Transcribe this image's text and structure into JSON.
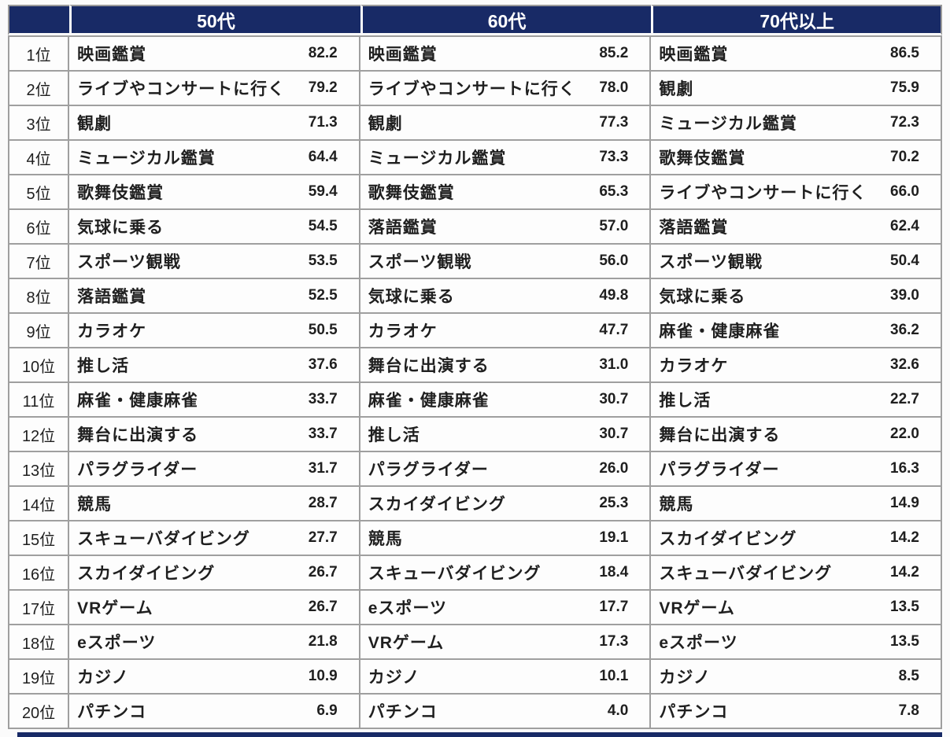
{
  "chart_data": {
    "type": "table",
    "description": "Ranking table of activities by age group with percentage values",
    "rank_labels": [
      "1位",
      "2位",
      "3位",
      "4位",
      "5位",
      "6位",
      "7位",
      "8位",
      "9位",
      "10位",
      "11位",
      "12位",
      "13位",
      "14位",
      "15位",
      "16位",
      "17位",
      "18位",
      "19位",
      "20位"
    ],
    "groups": [
      {
        "label": "50代",
        "items": [
          {
            "name": "映画鑑賞",
            "value": "82.2"
          },
          {
            "name": "ライブやコンサートに行く",
            "value": "79.2"
          },
          {
            "name": "観劇",
            "value": "71.3"
          },
          {
            "name": "ミュージカル鑑賞",
            "value": "64.4"
          },
          {
            "name": "歌舞伎鑑賞",
            "value": "59.4"
          },
          {
            "name": "気球に乗る",
            "value": "54.5"
          },
          {
            "name": "スポーツ観戦",
            "value": "53.5"
          },
          {
            "name": "落語鑑賞",
            "value": "52.5"
          },
          {
            "name": "カラオケ",
            "value": "50.5"
          },
          {
            "name": "推し活",
            "value": "37.6"
          },
          {
            "name": "麻雀・健康麻雀",
            "value": "33.7"
          },
          {
            "name": "舞台に出演する",
            "value": "33.7"
          },
          {
            "name": "パラグライダー",
            "value": "31.7"
          },
          {
            "name": "競馬",
            "value": "28.7"
          },
          {
            "name": "スキューバダイビング",
            "value": "27.7"
          },
          {
            "name": "スカイダイビング",
            "value": "26.7"
          },
          {
            "name": "VRゲーム",
            "value": "26.7"
          },
          {
            "name": "eスポーツ",
            "value": "21.8"
          },
          {
            "name": "カジノ",
            "value": "10.9"
          },
          {
            "name": "パチンコ",
            "value": "6.9"
          }
        ]
      },
      {
        "label": "60代",
        "items": [
          {
            "name": "映画鑑賞",
            "value": "85.2"
          },
          {
            "name": "ライブやコンサートに行く",
            "value": "78.0"
          },
          {
            "name": "観劇",
            "value": "77.3"
          },
          {
            "name": "ミュージカル鑑賞",
            "value": "73.3"
          },
          {
            "name": "歌舞伎鑑賞",
            "value": "65.3"
          },
          {
            "name": "落語鑑賞",
            "value": "57.0"
          },
          {
            "name": "スポーツ観戦",
            "value": "56.0"
          },
          {
            "name": "気球に乗る",
            "value": "49.8"
          },
          {
            "name": "カラオケ",
            "value": "47.7"
          },
          {
            "name": "舞台に出演する",
            "value": "31.0"
          },
          {
            "name": "麻雀・健康麻雀",
            "value": "30.7"
          },
          {
            "name": "推し活",
            "value": "30.7"
          },
          {
            "name": "パラグライダー",
            "value": "26.0"
          },
          {
            "name": "スカイダイビング",
            "value": "25.3"
          },
          {
            "name": "競馬",
            "value": "19.1"
          },
          {
            "name": "スキューバダイビング",
            "value": "18.4"
          },
          {
            "name": "eスポーツ",
            "value": "17.7"
          },
          {
            "name": "VRゲーム",
            "value": "17.3"
          },
          {
            "name": "カジノ",
            "value": "10.1"
          },
          {
            "name": "パチンコ",
            "value": "4.0"
          }
        ]
      },
      {
        "label": "70代以上",
        "items": [
          {
            "name": "映画鑑賞",
            "value": "86.5"
          },
          {
            "name": "観劇",
            "value": "75.9"
          },
          {
            "name": "ミュージカル鑑賞",
            "value": "72.3"
          },
          {
            "name": "歌舞伎鑑賞",
            "value": "70.2"
          },
          {
            "name": "ライブやコンサートに行く",
            "value": "66.0"
          },
          {
            "name": "落語鑑賞",
            "value": "62.4"
          },
          {
            "name": "スポーツ観戦",
            "value": "50.4"
          },
          {
            "name": "気球に乗る",
            "value": "39.0"
          },
          {
            "name": "麻雀・健康麻雀",
            "value": "36.2"
          },
          {
            "name": "カラオケ",
            "value": "32.6"
          },
          {
            "name": "推し活",
            "value": "22.7"
          },
          {
            "name": "舞台に出演する",
            "value": "22.0"
          },
          {
            "name": "パラグライダー",
            "value": "16.3"
          },
          {
            "name": "競馬",
            "value": "14.9"
          },
          {
            "name": "スカイダイビング",
            "value": "14.2"
          },
          {
            "name": "スキューバダイビング",
            "value": "14.2"
          },
          {
            "name": "VRゲーム",
            "value": "13.5"
          },
          {
            "name": "eスポーツ",
            "value": "13.5"
          },
          {
            "name": "カジノ",
            "value": "8.5"
          },
          {
            "name": "パチンコ",
            "value": "7.8"
          }
        ]
      }
    ]
  },
  "colors": {
    "header_bg": "#182a66",
    "header_text": "#ffffff",
    "border": "#9f9f9f",
    "cell_bg": "#fdfdfd",
    "body_text": "#1f1f1f",
    "bottom_bar": "#182a66"
  }
}
